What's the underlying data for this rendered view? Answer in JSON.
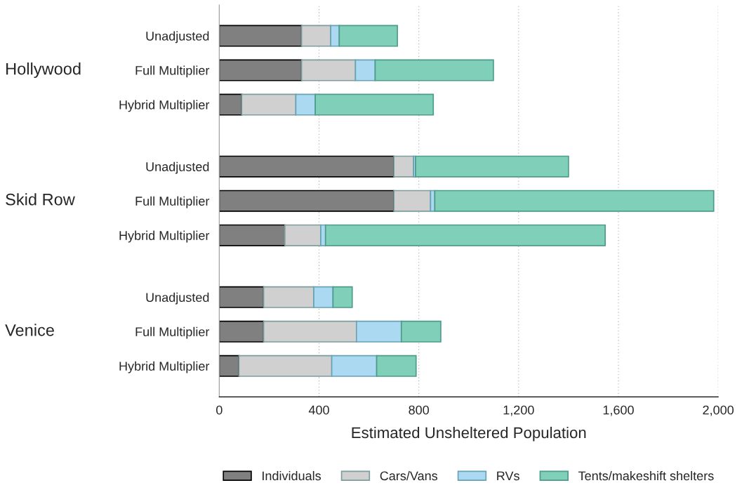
{
  "chart_data": {
    "type": "bar",
    "orientation": "horizontal",
    "stacked": true,
    "categories": [
      "Unadjusted",
      "Full Multiplier",
      "Hybrid Multiplier",
      "Unadjusted",
      "Full Multiplier",
      "Hybrid Multiplier",
      "Unadjusted",
      "Full Multiplier",
      "Hybrid Multiplier"
    ],
    "annotations": [
      "Hollywood",
      "Skid Row",
      "Venice"
    ],
    "series": [
      {
        "name": "Individuals",
        "color": "#808080",
        "values": [
          330,
          330,
          90,
          700,
          700,
          263,
          178,
          178,
          79
        ]
      },
      {
        "name": "Cars/Vans",
        "color": "#d0d0d0",
        "values": [
          117,
          216,
          217,
          79,
          147,
          144,
          201,
          372,
          372
        ]
      },
      {
        "name": "RVs",
        "color": "#abd9f2",
        "values": [
          34,
          79,
          78,
          8,
          17,
          19,
          77,
          180,
          180
        ]
      },
      {
        "name": "Tents/makeshift shelters",
        "color": "#80cfb8",
        "values": [
          233,
          474,
          473,
          613,
          1118,
          1121,
          77,
          158,
          158
        ]
      }
    ],
    "xlabel": "Estimated Unsheltered Population",
    "xlim": [
      0,
      2000
    ],
    "xticks": [
      0,
      400,
      800,
      {
        "value": 1200,
        "label": "1,200"
      },
      {
        "value": 1600,
        "label": "1,600"
      },
      {
        "value": 2000,
        "label": "2,000"
      }
    ],
    "grid": "x",
    "legend": "bottom"
  }
}
